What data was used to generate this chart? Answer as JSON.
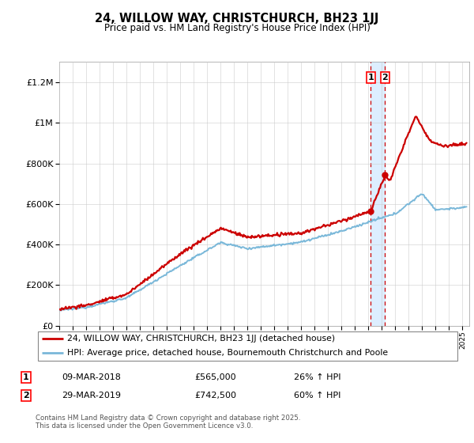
{
  "title_line1": "24, WILLOW WAY, CHRISTCHURCH, BH23 1JJ",
  "title_line2": "Price paid vs. HM Land Registry's House Price Index (HPI)",
  "legend_line1": "24, WILLOW WAY, CHRISTCHURCH, BH23 1JJ (detached house)",
  "legend_line2": "HPI: Average price, detached house, Bournemouth Christchurch and Poole",
  "sale1_date": "09-MAR-2018",
  "sale1_price": "£565,000",
  "sale1_hpi": "26% ↑ HPI",
  "sale2_date": "29-MAR-2019",
  "sale2_price": "£742,500",
  "sale2_hpi": "60% ↑ HPI",
  "copyright_text": "Contains HM Land Registry data © Crown copyright and database right 2025.\nThis data is licensed under the Open Government Licence v3.0.",
  "sale1_year": 2018.18,
  "sale2_year": 2019.24,
  "sale1_value": 565000,
  "sale2_value": 742500,
  "hpi_color": "#7ab8d9",
  "price_color": "#cc0000",
  "dashed_line_color": "#cc0000",
  "highlight_color": "#ddeeff",
  "ylim_max": 1300000,
  "ylim_min": 0,
  "xlim_min": 1995,
  "xlim_max": 2025.5
}
